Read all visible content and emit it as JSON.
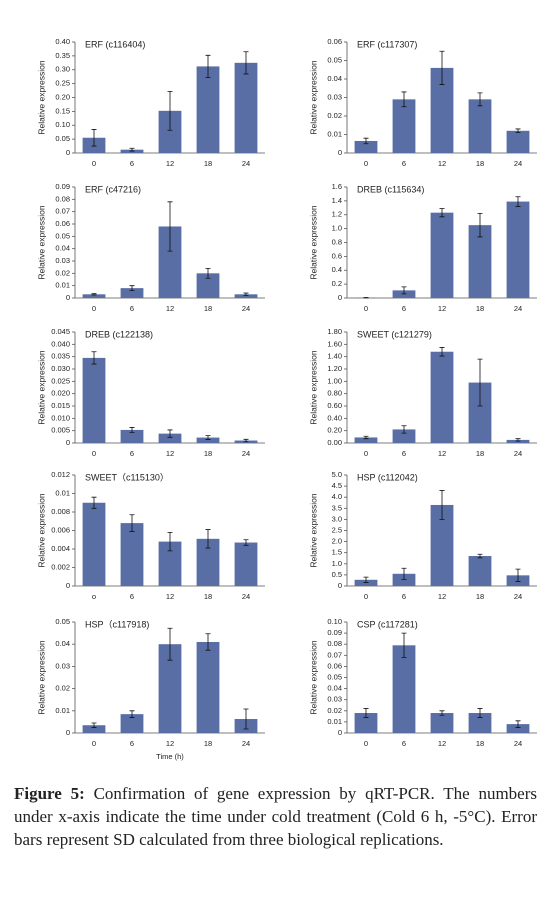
{
  "chart_data": [
    {
      "type": "bar",
      "title": "ERF (c116404)",
      "ylabel": "Relative expression",
      "color": "#5a6ea6",
      "categories": [
        "0",
        "6",
        "12",
        "18",
        "24"
      ],
      "values": [
        0.055,
        0.012,
        0.152,
        0.312,
        0.325
      ],
      "errors": [
        0.03,
        0.005,
        0.07,
        0.04,
        0.04
      ],
      "ylim": [
        0,
        0.4
      ],
      "yticks": [
        0,
        0.05,
        {
          "value": 0.1,
          "label": "0.10"
        },
        0.15,
        {
          "value": 0.2,
          "label": "0.20"
        },
        0.25,
        {
          "value": 0.3,
          "label": "0.30"
        },
        0.35,
        {
          "value": 0.4,
          "label": "0.40"
        }
      ]
    },
    {
      "type": "bar",
      "title": "ERF (c117307)",
      "ylabel": "Relative expression",
      "color": "#5a6ea6",
      "categories": [
        "0",
        "6",
        "12",
        "18",
        "24"
      ],
      "values": [
        0.0065,
        0.029,
        0.046,
        0.029,
        0.012
      ],
      "errors": [
        0.0015,
        0.004,
        0.009,
        0.0035,
        0.001
      ],
      "ylim": [
        0,
        0.06
      ],
      "yticks": [
        0,
        0.01,
        0.02,
        0.03,
        0.04,
        0.05,
        0.06
      ]
    },
    {
      "type": "bar",
      "title": "ERF (c47216)",
      "ylabel": "Relative expression",
      "color": "#5a6ea6",
      "categories": [
        "0",
        "6",
        "12",
        "18",
        "24"
      ],
      "values": [
        0.003,
        0.008,
        0.058,
        0.02,
        0.003
      ],
      "errors": [
        0.0005,
        0.002,
        0.02,
        0.004,
        0.001
      ],
      "ylim": [
        0,
        0.09
      ],
      "yticks": [
        0,
        0.01,
        0.02,
        0.03,
        0.04,
        0.05,
        0.06,
        0.07,
        0.08,
        0.09
      ]
    },
    {
      "type": "bar",
      "title": "DREB (c115634)",
      "ylabel": "Relative expression",
      "color": "#5a6ea6",
      "categories": [
        "0",
        "6",
        "12",
        "18",
        "24"
      ],
      "values": [
        0.005,
        0.11,
        1.23,
        1.05,
        1.39
      ],
      "errors": [
        0.002,
        0.05,
        0.06,
        0.17,
        0.07
      ],
      "ylim": [
        0,
        1.6
      ],
      "yticks": [
        0,
        0.2,
        0.4,
        0.6,
        0.8,
        {
          "value": 1,
          "label": "1.0"
        },
        1.2,
        1.4,
        1.6
      ]
    },
    {
      "type": "bar",
      "title": "DREB (c122138)",
      "ylabel": "Relative expression",
      "color": "#5a6ea6",
      "categories": [
        "0",
        "6",
        "12",
        "18",
        "24"
      ],
      "values": [
        0.0345,
        0.0053,
        0.0038,
        0.0022,
        0.001
      ],
      "errors": [
        0.0025,
        0.001,
        0.0015,
        0.0008,
        0.0005
      ],
      "ylim": [
        0,
        0.045
      ],
      "yticks": [
        0,
        0.005,
        {
          "value": 0.01,
          "label": "0.010"
        },
        0.015,
        {
          "value": 0.02,
          "label": "0.020"
        },
        0.025,
        {
          "value": 0.03,
          "label": "0.030"
        },
        0.035,
        {
          "value": 0.04,
          "label": "0.040"
        },
        0.045
      ]
    },
    {
      "type": "bar",
      "title": "SWEET (c121279)",
      "ylabel": "Relative expression",
      "color": "#5a6ea6",
      "categories": [
        "0",
        "6",
        "12",
        "18",
        "24"
      ],
      "values": [
        0.09,
        0.22,
        1.48,
        0.98,
        0.05
      ],
      "errors": [
        0.02,
        0.06,
        0.07,
        0.38,
        0.02
      ],
      "ylim": [
        0,
        1.8
      ],
      "yticks": [
        {
          "value": 0,
          "label": "0.00"
        },
        {
          "value": 0.2,
          "label": "0.20"
        },
        {
          "value": 0.4,
          "label": "0.40"
        },
        {
          "value": 0.6,
          "label": "0.60"
        },
        {
          "value": 0.8,
          "label": "0.80"
        },
        {
          "value": 1,
          "label": "1.00"
        },
        {
          "value": 1.2,
          "label": "1.20"
        },
        {
          "value": 1.4,
          "label": "1.40"
        },
        {
          "value": 1.6,
          "label": "1.60"
        },
        {
          "value": 1.8,
          "label": "1.80"
        }
      ]
    },
    {
      "type": "bar",
      "title": "SWEET（c115130）",
      "ylabel": "Relative expression",
      "color": "#5a6ea6",
      "categories": [
        "o",
        "6",
        "12",
        "18",
        "24"
      ],
      "values": [
        0.009,
        0.0068,
        0.0048,
        0.0051,
        0.0047
      ],
      "errors": [
        0.0006,
        0.0009,
        0.001,
        0.001,
        0.0003
      ],
      "ylim": [
        0,
        0.012
      ],
      "yticks": [
        0,
        0.002,
        0.004,
        0.006,
        0.008,
        0.01,
        0.012
      ]
    },
    {
      "type": "bar",
      "title": "HSP (c112042)",
      "ylabel": "Relative expression",
      "color": "#5a6ea6",
      "categories": [
        "0",
        "6",
        "12",
        "18",
        "24"
      ],
      "values": [
        0.28,
        0.55,
        3.65,
        1.35,
        0.48
      ],
      "errors": [
        0.12,
        0.25,
        0.65,
        0.08,
        0.28
      ],
      "ylim": [
        0,
        5
      ],
      "yticks": [
        0,
        0.5,
        {
          "value": 1,
          "label": "1.0"
        },
        1.5,
        {
          "value": 2,
          "label": "2.0"
        },
        2.5,
        {
          "value": 3,
          "label": "3.0"
        },
        3.5,
        {
          "value": 4,
          "label": "4.0"
        },
        4.5,
        {
          "value": 5,
          "label": "5.0"
        }
      ]
    },
    {
      "type": "bar",
      "title": "HSP（c117918)",
      "ylabel": "Relative expression",
      "xlabel": "Time (h)",
      "color": "#5a6ea6",
      "categories": [
        "0",
        "6",
        "12",
        "18",
        "24"
      ],
      "values": [
        0.0035,
        0.0085,
        0.04,
        0.041,
        0.0063
      ],
      "errors": [
        0.001,
        0.0015,
        0.0072,
        0.0037,
        0.0045
      ],
      "ylim": [
        0,
        0.05
      ],
      "yticks": [
        0,
        0.01,
        0.02,
        0.03,
        0.04,
        0.05
      ]
    },
    {
      "type": "bar",
      "title": "CSP (c117281)",
      "ylabel": "Relative expression",
      "color": "#5a6ea6",
      "categories": [
        "0",
        "6",
        "12",
        "18",
        "24"
      ],
      "values": [
        0.018,
        0.079,
        0.018,
        0.018,
        0.008
      ],
      "errors": [
        0.004,
        0.011,
        0.002,
        0.004,
        0.003
      ],
      "ylim": [
        0,
        0.1
      ],
      "yticks": [
        0,
        0.01,
        0.02,
        0.03,
        0.04,
        0.05,
        0.06,
        0.07,
        0.08,
        0.09,
        {
          "value": 0.1,
          "label": "0.10"
        }
      ]
    }
  ],
  "caption": {
    "label": "Figure 5:",
    "text": "Confirmation of gene expression by qRT-PCR. The numbers under x-axis indicate the time under cold treatment (Cold 6 h, -5°C). Error bars represent SD calculated from three biological replications."
  }
}
